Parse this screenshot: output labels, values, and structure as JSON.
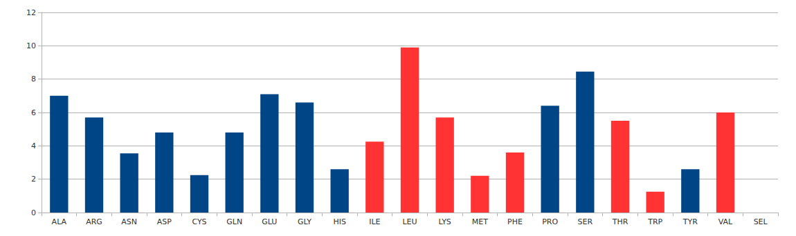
{
  "chart_data": {
    "type": "bar",
    "categories": [
      "ALA",
      "ARG",
      "ASN",
      "ASP",
      "CYS",
      "GLN",
      "GLU",
      "GLY",
      "HIS",
      "ILE",
      "LEU",
      "LYS",
      "MET",
      "PHE",
      "PRO",
      "SER",
      "THR",
      "TRP",
      "TYR",
      "VAL",
      "SEL"
    ],
    "values": [
      7.0,
      5.7,
      3.55,
      4.8,
      2.25,
      4.8,
      7.1,
      6.6,
      2.6,
      4.25,
      9.9,
      5.7,
      2.2,
      3.6,
      6.4,
      8.45,
      5.5,
      1.25,
      2.6,
      6.0,
      0
    ],
    "colors": [
      "#004586",
      "#004586",
      "#004586",
      "#004586",
      "#004586",
      "#004586",
      "#004586",
      "#004586",
      "#004586",
      "#ff3333",
      "#ff3333",
      "#ff3333",
      "#ff3333",
      "#ff3333",
      "#004586",
      "#004586",
      "#ff3333",
      "#ff3333",
      "#004586",
      "#ff3333",
      "#004586"
    ],
    "ylim": [
      0,
      12
    ],
    "yticks": [
      0,
      2,
      4,
      6,
      8,
      10,
      12
    ],
    "grid": true
  }
}
